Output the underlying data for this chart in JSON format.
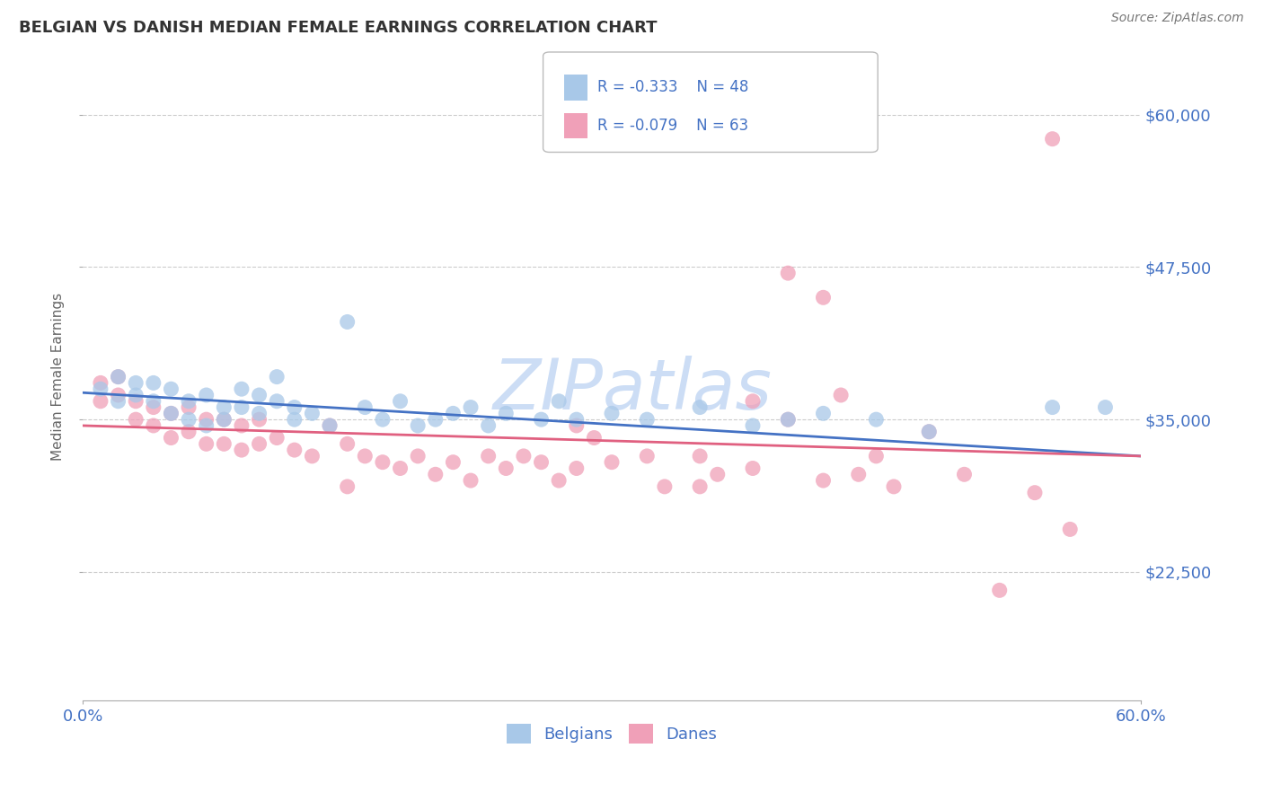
{
  "title": "BELGIAN VS DANISH MEDIAN FEMALE EARNINGS CORRELATION CHART",
  "source": "Source: ZipAtlas.com",
  "ylabel": "Median Female Earnings",
  "xlim": [
    0.0,
    0.6
  ],
  "ylim": [
    12000,
    65000
  ],
  "yticks": [
    22500,
    35000,
    47500,
    60000
  ],
  "ytick_labels": [
    "$22,500",
    "$35,000",
    "$47,500",
    "$60,000"
  ],
  "xticks": [
    0.0,
    0.6
  ],
  "xtick_labels": [
    "0.0%",
    "60.0%"
  ],
  "legend_r1": "-0.333",
  "legend_n1": "48",
  "legend_r2": "-0.079",
  "legend_n2": "63",
  "legend_label1": "Belgians",
  "legend_label2": "Danes",
  "blue_color": "#a8c8e8",
  "pink_color": "#f0a0b8",
  "blue_line_color": "#4472c4",
  "pink_line_color": "#e06080",
  "label_color": "#4472c4",
  "watermark_color": "#ccddf5",
  "background_color": "#ffffff",
  "title_color": "#333333",
  "blue_scatter_x": [
    0.01,
    0.02,
    0.02,
    0.03,
    0.03,
    0.04,
    0.04,
    0.05,
    0.05,
    0.06,
    0.06,
    0.07,
    0.07,
    0.08,
    0.08,
    0.09,
    0.09,
    0.1,
    0.1,
    0.11,
    0.11,
    0.12,
    0.12,
    0.13,
    0.14,
    0.15,
    0.16,
    0.17,
    0.18,
    0.19,
    0.2,
    0.21,
    0.22,
    0.23,
    0.24,
    0.26,
    0.27,
    0.28,
    0.3,
    0.32,
    0.35,
    0.38,
    0.4,
    0.42,
    0.45,
    0.48,
    0.55,
    0.58
  ],
  "blue_scatter_y": [
    37500,
    38500,
    36500,
    38000,
    37000,
    36500,
    38000,
    37500,
    35500,
    36500,
    35000,
    37000,
    34500,
    36000,
    35000,
    37500,
    36000,
    35500,
    37000,
    36500,
    38500,
    35000,
    36000,
    35500,
    34500,
    43000,
    36000,
    35000,
    36500,
    34500,
    35000,
    35500,
    36000,
    34500,
    35500,
    35000,
    36500,
    35000,
    35500,
    35000,
    36000,
    34500,
    35000,
    35500,
    35000,
    34000,
    36000,
    36000
  ],
  "pink_scatter_x": [
    0.01,
    0.01,
    0.02,
    0.02,
    0.03,
    0.03,
    0.04,
    0.04,
    0.05,
    0.05,
    0.06,
    0.06,
    0.07,
    0.07,
    0.08,
    0.08,
    0.09,
    0.09,
    0.1,
    0.1,
    0.11,
    0.12,
    0.13,
    0.14,
    0.15,
    0.15,
    0.16,
    0.17,
    0.18,
    0.19,
    0.2,
    0.21,
    0.22,
    0.23,
    0.24,
    0.25,
    0.26,
    0.27,
    0.28,
    0.29,
    0.3,
    0.32,
    0.33,
    0.35,
    0.36,
    0.38,
    0.4,
    0.42,
    0.43,
    0.44,
    0.46,
    0.48,
    0.5,
    0.52,
    0.54,
    0.55,
    0.56,
    0.4,
    0.42,
    0.45,
    0.28,
    0.35,
    0.38
  ],
  "pink_scatter_y": [
    36500,
    38000,
    37000,
    38500,
    35000,
    36500,
    34500,
    36000,
    33500,
    35500,
    34000,
    36000,
    33000,
    35000,
    33000,
    35000,
    32500,
    34500,
    33000,
    35000,
    33500,
    32500,
    32000,
    34500,
    33000,
    29500,
    32000,
    31500,
    31000,
    32000,
    30500,
    31500,
    30000,
    32000,
    31000,
    32000,
    31500,
    30000,
    31000,
    33500,
    31500,
    32000,
    29500,
    32000,
    30500,
    36500,
    35000,
    30000,
    37000,
    30500,
    29500,
    34000,
    30500,
    21000,
    29000,
    58000,
    26000,
    47000,
    45000,
    32000,
    34500,
    29500,
    31000
  ],
  "blue_trendline_x": [
    0.0,
    0.6
  ],
  "blue_trendline_y": [
    37200,
    32000
  ],
  "pink_trendline_x": [
    0.0,
    0.6
  ],
  "pink_trendline_y": [
    34500,
    32000
  ]
}
